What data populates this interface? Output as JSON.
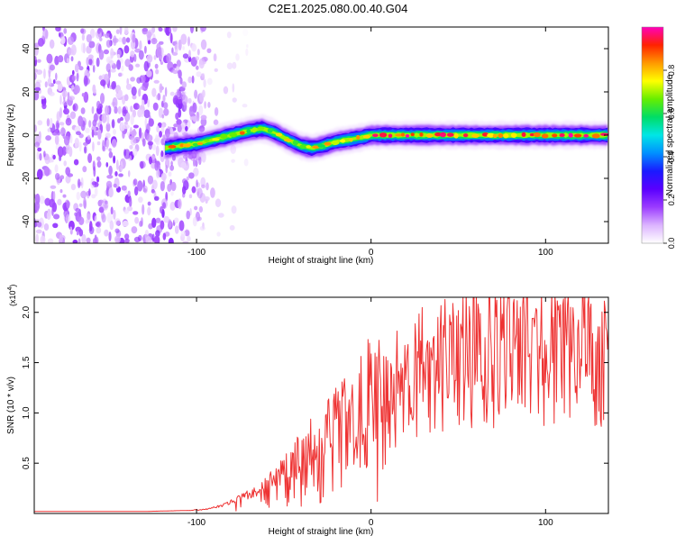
{
  "title": "C2E1.2025.080.00.40.G04",
  "chart_data": [
    {
      "type": "heatmap",
      "xlabel": "Height of straight line (km)",
      "ylabel": "Frequency (Hz)",
      "xlim": [
        -193,
        136
      ],
      "ylim": [
        -50,
        50
      ],
      "xticks": [
        -100,
        0,
        100
      ],
      "yticks": [
        -40,
        -20,
        0,
        20,
        40
      ],
      "colorbar": {
        "label": "Normalized spectral amplitude",
        "range": [
          0,
          1
        ],
        "ticks": [
          "0.0",
          "0.2",
          "0.4",
          "0.6",
          "0.8"
        ],
        "colors": [
          "#ffffff",
          "#dcb4ff",
          "#9b3cff",
          "#5a00ff",
          "#1a1aff",
          "#0090ff",
          "#00e6e6",
          "#00dd66",
          "#66ee00",
          "#ffff00",
          "#ff9900",
          "#ff2200",
          "#ff00bb"
        ]
      },
      "noise_region_x": [
        -193,
        -95
      ],
      "signal_start_x": -118,
      "center_frequency_track": {
        "x": [
          -118,
          -110,
          -100,
          -90,
          -80,
          -70,
          -62,
          -55,
          -48,
          -40,
          -34,
          -28,
          -20,
          -12,
          -5,
          0,
          10,
          20,
          40,
          60,
          80,
          100,
          120,
          136
        ],
        "y": [
          -6,
          -5,
          -4,
          -2,
          0,
          2,
          3,
          1,
          -2,
          -5,
          -6,
          -5,
          -3,
          -2,
          -1,
          0,
          0,
          0,
          0,
          0,
          0,
          0,
          0,
          0
        ]
      }
    },
    {
      "type": "line",
      "xlabel": "Height of straight line (km)",
      "ylabel": "SNR (10 * v/v)",
      "multiplier": "(x10",
      "multiplier_exp": "4",
      "xlim": [
        -193,
        136
      ],
      "ylim": [
        0,
        2.15
      ],
      "xticks": [
        -100,
        0,
        100
      ],
      "yticks": [
        "0.5",
        "1.0",
        "1.5",
        "2.0"
      ],
      "series": [
        {
          "color": "#ee3333",
          "x": [
            -193,
            -160,
            -130,
            -105,
            -95,
            -85,
            -78,
            -70,
            -62,
            -55,
            -48,
            -40,
            -32,
            -25,
            -18,
            -12,
            -5,
            0,
            5,
            10,
            12,
            15,
            20,
            30,
            40,
            50,
            60,
            70,
            80,
            90,
            100,
            110,
            120,
            130,
            136
          ],
          "y": [
            0.02,
            0.02,
            0.02,
            0.03,
            0.04,
            0.08,
            0.13,
            0.19,
            0.27,
            0.38,
            0.48,
            0.58,
            0.7,
            0.78,
            0.86,
            0.95,
            1.04,
            1.13,
            1.22,
            1.25,
            1.0,
            1.28,
            1.32,
            1.42,
            1.48,
            1.55,
            1.55,
            1.53,
            1.55,
            1.58,
            1.58,
            1.56,
            1.55,
            1.55,
            1.57
          ]
        }
      ]
    }
  ]
}
